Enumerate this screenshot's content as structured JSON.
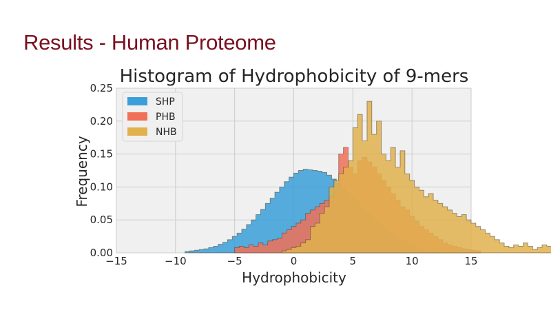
{
  "slide": {
    "title": "Results - Human Proteome"
  },
  "colors": {
    "title": "#7a1020",
    "plot_background": "#f0f0f0",
    "grid": "#cbcbcb",
    "SHP": "#3a9fd8",
    "PHB": "#f07058",
    "NHB": "#e1b14e"
  },
  "chart_data": {
    "type": "histogram",
    "title": "Histogram of Hydrophobicity of 9-mers",
    "xlabel": "Hydrophobicity",
    "ylabel": "Frequency",
    "xlim": [
      -15,
      15
    ],
    "ylim": [
      0,
      0.25
    ],
    "xticks": [
      "−15",
      "−10",
      "−5",
      "0",
      "5",
      "10",
      "15"
    ],
    "yticks": [
      "0.00",
      "0.05",
      "0.10",
      "0.15",
      "0.20",
      "0.25"
    ],
    "grid": true,
    "legend_position": "top-left",
    "bin_width": 0.4,
    "series": [
      {
        "name": "SHP",
        "x_start": -9.2,
        "values": [
          0.002,
          0.003,
          0.004,
          0.005,
          0.006,
          0.008,
          0.01,
          0.013,
          0.016,
          0.02,
          0.025,
          0.03,
          0.036,
          0.043,
          0.05,
          0.058,
          0.066,
          0.075,
          0.083,
          0.092,
          0.1,
          0.108,
          0.115,
          0.121,
          0.125,
          0.127,
          0.126,
          0.125,
          0.124,
          0.122,
          0.118,
          0.112,
          0.106,
          0.099,
          0.092,
          0.085,
          0.078,
          0.07,
          0.063,
          0.056,
          0.049,
          0.043,
          0.037,
          0.031,
          0.026,
          0.021,
          0.017,
          0.013,
          0.01,
          0.007,
          0.005,
          0.003,
          0.002,
          0.001
        ]
      },
      {
        "name": "PHB",
        "x_start": -5.0,
        "values": [
          0.008,
          0.01,
          0.008,
          0.012,
          0.01,
          0.015,
          0.012,
          0.018,
          0.02,
          0.022,
          0.03,
          0.035,
          0.04,
          0.045,
          0.05,
          0.06,
          0.065,
          0.07,
          0.075,
          0.08,
          0.085,
          0.1,
          0.15,
          0.16,
          0.13,
          0.12,
          0.14,
          0.145,
          0.138,
          0.13,
          0.12,
          0.11,
          0.1,
          0.09,
          0.08,
          0.07,
          0.065,
          0.055,
          0.048,
          0.04,
          0.035,
          0.03,
          0.025,
          0.02,
          0.015,
          0.012,
          0.01,
          0.008,
          0.006,
          0.005,
          0.004,
          0.003
        ]
      },
      {
        "name": "NHB",
        "x_start": -1.0,
        "values": [
          0.003,
          0.005,
          0.008,
          0.01,
          0.015,
          0.02,
          0.04,
          0.045,
          0.06,
          0.07,
          0.1,
          0.11,
          0.12,
          0.13,
          0.14,
          0.19,
          0.21,
          0.17,
          0.23,
          0.18,
          0.2,
          0.15,
          0.14,
          0.16,
          0.13,
          0.155,
          0.12,
          0.11,
          0.1,
          0.095,
          0.085,
          0.09,
          0.08,
          0.075,
          0.07,
          0.065,
          0.06,
          0.055,
          0.058,
          0.05,
          0.045,
          0.04,
          0.035,
          0.03,
          0.025,
          0.02,
          0.015,
          0.01,
          0.008,
          0.012,
          0.01,
          0.015,
          0.01,
          0.005,
          0.008,
          0.012,
          0.01,
          0.014,
          0.005,
          0.003
        ]
      }
    ]
  }
}
